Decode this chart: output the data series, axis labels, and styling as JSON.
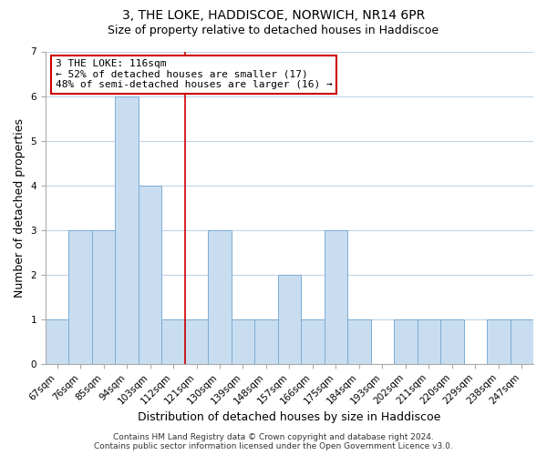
{
  "title": "3, THE LOKE, HADDISCOE, NORWICH, NR14 6PR",
  "subtitle": "Size of property relative to detached houses in Haddiscoe",
  "xlabel": "Distribution of detached houses by size in Haddiscoe",
  "ylabel": "Number of detached properties",
  "bar_labels": [
    "67sqm",
    "76sqm",
    "85sqm",
    "94sqm",
    "103sqm",
    "112sqm",
    "121sqm",
    "130sqm",
    "139sqm",
    "148sqm",
    "157sqm",
    "166sqm",
    "175sqm",
    "184sqm",
    "193sqm",
    "202sqm",
    "211sqm",
    "220sqm",
    "229sqm",
    "238sqm",
    "247sqm"
  ],
  "bar_values": [
    1,
    3,
    3,
    6,
    4,
    1,
    1,
    3,
    1,
    1,
    2,
    1,
    3,
    1,
    0,
    1,
    1,
    1,
    0,
    1,
    1
  ],
  "bar_color": "#c9ddf0",
  "bar_edge_color": "#7aadd4",
  "ylim": [
    0,
    7
  ],
  "yticks": [
    0,
    1,
    2,
    3,
    4,
    5,
    6,
    7
  ],
  "ref_line_x": 5.5,
  "ref_line_color": "#cc0000",
  "annotation_title": "3 THE LOKE: 116sqm",
  "annotation_line1": "← 52% of detached houses are smaller (17)",
  "annotation_line2": "48% of semi-detached houses are larger (16) →",
  "annotation_box_color": "#ffffff",
  "annotation_box_edge": "#cc0000",
  "footer_line1": "Contains HM Land Registry data © Crown copyright and database right 2024.",
  "footer_line2": "Contains public sector information licensed under the Open Government Licence v3.0.",
  "background_color": "#ffffff",
  "grid_color": "#c0d4e8",
  "title_fontsize": 10,
  "subtitle_fontsize": 9,
  "axis_label_fontsize": 9,
  "tick_fontsize": 7.5,
  "annotation_fontsize": 8,
  "footer_fontsize": 6.5
}
